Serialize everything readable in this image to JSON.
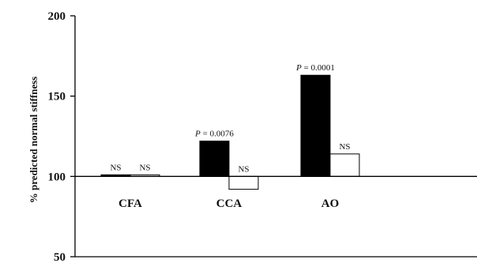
{
  "chart_data": {
    "type": "bar",
    "ylabel": "% predicted normal stiffness",
    "ylim": [
      50,
      200
    ],
    "yticks": [
      50,
      100,
      150,
      200
    ],
    "baseline": 100,
    "categories": [
      "CFA",
      "CCA",
      "AO"
    ],
    "series": [
      {
        "values": [
          101,
          122,
          163
        ],
        "color": "#000000"
      },
      {
        "values": [
          101,
          92,
          114
        ],
        "color": "#ffffff"
      }
    ],
    "annotations": [
      {
        "category": "CFA",
        "series": 0,
        "text": "NS"
      },
      {
        "category": "CFA",
        "series": 1,
        "text": "NS"
      },
      {
        "category": "CCA",
        "series": 0,
        "p_label": "P",
        "text": " = 0.0076"
      },
      {
        "category": "CCA",
        "series": 1,
        "text": "NS"
      },
      {
        "category": "AO",
        "series": 0,
        "p_label": "P",
        "text": " = 0.0001"
      },
      {
        "category": "AO",
        "series": 1,
        "text": "NS"
      }
    ],
    "grid": false,
    "legend": "none"
  }
}
